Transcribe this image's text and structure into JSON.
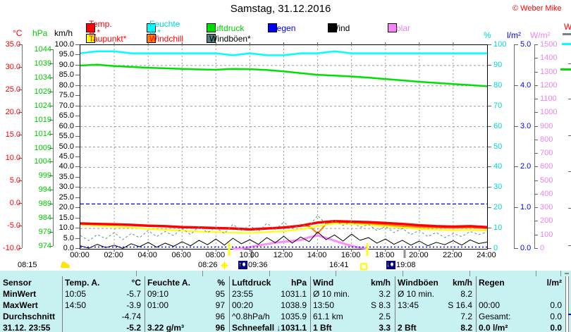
{
  "header": {
    "title": "Samstag, 31.12.2016",
    "copyright": "© Weber Mike"
  },
  "axis_headers": {
    "temp": "°C",
    "pressure": "hPa",
    "wind": "km/h",
    "humidity": "%",
    "rain": "l/m²",
    "solar": "W/m²"
  },
  "right_cutoff": {
    "label": "W"
  },
  "legend": {
    "items": [
      {
        "label": "Temp. A.*",
        "swatch": "#FF0000",
        "text_color": "#FF0000",
        "row": 0
      },
      {
        "label": "Feuchte A.*",
        "swatch": "#00FFFF",
        "text_color": "#00D5D5",
        "row": 0
      },
      {
        "label": "Luftdruck",
        "swatch": "#00E000",
        "text_color": "#00CC00",
        "row": 0
      },
      {
        "label": "Regen",
        "swatch": "#0000FF",
        "text_color": "#0000FF",
        "row": 0
      },
      {
        "label": "Wind",
        "swatch": "#000000",
        "text_color": "#000000",
        "row": 0
      },
      {
        "label": "Solar",
        "swatch": "#FF82FF",
        "text_color": "#EE82EE",
        "row": 0
      },
      {
        "label": "Taupunkt*",
        "swatch": "#FFFF00",
        "text_color": "#FF0000",
        "row": 1
      },
      {
        "label": "Windchill",
        "swatch": "#FF8000",
        "text_color": "#FF0000",
        "row": 1
      },
      {
        "label": "Windböen*",
        "swatch": "#4E7F7F",
        "text_color": "#000000",
        "row": 1
      }
    ]
  },
  "chart_data": {
    "type": "line",
    "title": "Samstag, 31.12.2016",
    "time_ticks": [
      "00:00",
      "02:00",
      "04:00",
      "06:00",
      "08:00",
      "10:00",
      "12:00",
      "14:00",
      "16:00",
      "18:00",
      "20:00",
      "22:00",
      "24:00"
    ],
    "grid": "dashed-gray, vertical every 2h, horizontal every 10 units",
    "axes": {
      "temp": {
        "unit": "°C",
        "min": -10,
        "max": 35,
        "ticks": [
          "35.0",
          "30.0",
          "25.0",
          "20.0",
          "15.0",
          "10.0",
          "5.0",
          "0.0",
          "-5.0",
          "-10.0"
        ]
      },
      "pressure": {
        "unit": "hPa",
        "min": 974,
        "max": 1044,
        "ticks": [
          "1044",
          "1039",
          "1034",
          "1029",
          "1024",
          "1019",
          "1014",
          "1009",
          "1004",
          "999",
          "994",
          "989",
          "984",
          "979",
          "974"
        ]
      },
      "wind": {
        "unit": "km/h",
        "min": 0,
        "max": 100,
        "ticks": [
          "100.0",
          "95.0",
          "90.0",
          "85.0",
          "80.0",
          "75.0",
          "70.0",
          "65.0",
          "60.0",
          "55.0",
          "50.0",
          "45.0",
          "40.0",
          "35.0",
          "30.0",
          "25.0",
          "20.0",
          "15.0",
          "10.0",
          "5.0",
          "0.0"
        ]
      },
      "humidity": {
        "unit": "%",
        "min": 0,
        "max": 100,
        "ticks": [
          "100",
          "90",
          "80",
          "70",
          "60",
          "50",
          "40",
          "30",
          "20",
          "10",
          "0"
        ]
      },
      "rain": {
        "unit": "l/m²",
        "min": 0,
        "max": 5,
        "ticks": [
          "5.0",
          "4.0",
          "3.0",
          "2.0",
          "1.0",
          "0.0"
        ]
      },
      "solar": {
        "unit": "W/m²",
        "min": 0,
        "max": 1500,
        "ticks": [
          "1500",
          "1400",
          "1300",
          "1200",
          "1100",
          "1000",
          "900",
          "800",
          "700",
          "600",
          "500",
          "400",
          "300",
          "200",
          "100",
          "0"
        ]
      }
    },
    "series": [
      {
        "name": "Luftdruck",
        "axis": "pressure",
        "color": "#00E000",
        "width": 2.5,
        "step_h": 1,
        "values": [
          1038.5,
          1038.8,
          1038.3,
          1038.0,
          1037.7,
          1037.5,
          1037.3,
          1037.1,
          1037.0,
          1037.3,
          1037.2,
          1036.9,
          1036.4,
          1035.8,
          1035.2,
          1034.9,
          1034.6,
          1034.2,
          1033.7,
          1033.2,
          1032.7,
          1032.3,
          1031.9,
          1031.5,
          1031.1
        ]
      },
      {
        "name": "Feuchte A.*",
        "axis": "humidity",
        "color": "#00FFFF",
        "width": 2.5,
        "step_h": 1,
        "values": [
          96,
          97,
          97,
          96,
          96,
          96,
          96,
          96,
          96,
          95,
          96,
          95,
          95,
          96,
          96,
          97,
          96,
          96,
          96,
          96,
          96,
          96,
          96,
          96,
          96
        ]
      },
      {
        "name": "Windchill",
        "axis": "temp",
        "color": "#FF8000",
        "width": 2,
        "step_h": 0.5,
        "values": [
          -4.4,
          -4.45,
          -4.5,
          -4.55,
          -4.6,
          -4.65,
          -4.7,
          -4.8,
          -4.9,
          -4.95,
          -5.0,
          -5.1,
          -5.2,
          -5.25,
          -5.3,
          -5.35,
          -5.4,
          -5.45,
          -5.5,
          -5.6,
          -5.7,
          -5.6,
          -5.5,
          -5.4,
          -5.3,
          -5.1,
          -4.9,
          -5.0,
          -6.6,
          -4.5,
          -4.3,
          -4.2,
          -4.3,
          -4.4,
          -4.5,
          -4.6,
          -4.7,
          -4.85,
          -5.0,
          -5.1,
          -5.2,
          -5.25,
          -5.3,
          -5.35,
          -5.4,
          -5.35,
          -5.3,
          -5.4,
          -5.5
        ]
      },
      {
        "name": "Taupunkt*",
        "axis": "temp",
        "color": "#FFFF00",
        "width": 2,
        "step_h": 1,
        "values": [
          -4.7,
          -4.9,
          -5.1,
          -5.3,
          -5.6,
          -5.8,
          -6.0,
          -6.2,
          -6.3,
          -6.4,
          -6.5,
          -6.3,
          -6.1,
          -5.7,
          -5.0,
          -4.4,
          -4.5,
          -4.7,
          -5.0,
          -5.3,
          -5.6,
          -5.8,
          -5.9,
          -5.8,
          -6.0
        ]
      },
      {
        "name": "Temp. A.*",
        "axis": "temp",
        "color": "#FF0000",
        "width": 3.5,
        "step_h": 1,
        "values": [
          -4.4,
          -4.5,
          -4.6,
          -4.7,
          -4.9,
          -5.0,
          -5.2,
          -5.3,
          -5.4,
          -5.5,
          -5.7,
          -5.5,
          -5.3,
          -4.9,
          -4.2,
          -3.9,
          -4.0,
          -4.1,
          -4.3,
          -4.5,
          -4.8,
          -5.0,
          -5.1,
          -5.0,
          -5.2
        ]
      },
      {
        "name": "Solar",
        "axis": "solar",
        "color": "#FB8CFB",
        "width": 3,
        "step_h": 0.5,
        "clip_zero": true,
        "values": [
          0,
          0,
          0,
          0,
          0,
          0,
          0,
          0,
          0,
          0,
          0,
          0,
          0,
          0,
          0,
          0,
          0,
          0,
          0,
          2,
          12,
          25,
          35,
          45,
          52,
          58,
          65,
          85,
          98,
          80,
          60,
          40,
          22,
          8,
          0,
          0,
          0,
          0,
          0,
          0,
          0,
          0,
          0,
          0,
          0,
          0,
          0,
          0,
          0
        ]
      },
      {
        "name": "Windböen*",
        "axis": "wind",
        "color": "#5E8F8F",
        "width": 1,
        "dash": "3,3",
        "step_h": 0.5,
        "values": [
          6.5,
          4.0,
          7.0,
          5.0,
          8.0,
          4.5,
          7.5,
          5.5,
          9.0,
          6.0,
          8.5,
          6.5,
          10.0,
          7.0,
          11.0,
          8.0,
          10.5,
          7.5,
          12.0,
          9.0,
          11.5,
          8.5,
          12.5,
          9.5,
          13.0,
          10.0,
          12.0,
          11.0,
          16.4,
          12.0,
          14.0,
          11.5,
          13.5,
          10.5,
          12.0,
          9.0,
          11.0,
          8.0,
          10.0,
          7.0,
          9.0,
          6.0,
          8.0,
          5.5,
          7.5,
          6.0,
          8.5,
          7.0,
          8.2
        ]
      },
      {
        "name": "Wind",
        "axis": "wind",
        "color": "#000000",
        "width": 1,
        "step_h": 0.5,
        "values": [
          1.5,
          0.3,
          2.2,
          0.6,
          1.8,
          0.2,
          2.5,
          1.0,
          3.2,
          0.8,
          2.8,
          1.2,
          3.5,
          1.5,
          4.2,
          2.0,
          4.8,
          1.8,
          5.2,
          2.5,
          4.5,
          2.2,
          5.5,
          3.0,
          6.2,
          2.8,
          5.8,
          3.5,
          8.3,
          4.5,
          6.8,
          3.8,
          7.2,
          4.2,
          5.5,
          2.8,
          4.8,
          2.2,
          4.2,
          1.8,
          3.8,
          1.5,
          3.2,
          2.0,
          4.0,
          1.8,
          4.4,
          2.6,
          3.3
        ]
      },
      {
        "name": "Regen",
        "axis": "rain",
        "color": "#0000FF",
        "width": 1.5,
        "dash": "2,3",
        "step_h": 1,
        "values": [
          0,
          0,
          0,
          0,
          0,
          0,
          0,
          0,
          0,
          0,
          0,
          0,
          0,
          0,
          0,
          0,
          0,
          0,
          0,
          0,
          0,
          0,
          0,
          0,
          0
        ]
      }
    ],
    "threshold_line": {
      "color": "#0000FF",
      "style": "dashed",
      "value_on_kmh_scale": 22
    },
    "sun_moon_markers": [
      {
        "time": "08:26",
        "color": "#FFFF00"
      },
      {
        "time": "09:36",
        "color": "#909090"
      },
      {
        "time": "16:41",
        "color": "#FFFF00"
      },
      {
        "time": "19:08",
        "color": "#909090"
      }
    ]
  },
  "events": [
    {
      "time": "08:15",
      "icon": "cloud"
    },
    {
      "time": "08:26",
      "icon": "sun"
    },
    {
      "time": "09:36",
      "icon": "moonrise"
    },
    {
      "time": "16:41",
      "icon": "sun-outline"
    },
    {
      "time": "19:08",
      "icon": "moonset"
    }
  ],
  "table": {
    "header": [
      "Sensor",
      "Temp. A.",
      "°C",
      "Feuchte A.",
      "%",
      "Luftdruck",
      "hPa",
      "Wind",
      "km/h",
      "Windböen",
      "km/h",
      "Regen",
      "l/m²"
    ],
    "rows": [
      [
        "MinWert",
        "10:05",
        "-5.7",
        "09:10",
        "95",
        "23:55",
        "1031.1",
        "Ø 10 min.",
        "3.2",
        "Ø 10 min.",
        "8.2",
        "",
        ""
      ],
      [
        "MaxWert",
        "14:50",
        "-3.9",
        "01:00",
        "97",
        "00:20",
        "1038.9",
        "13:50",
        "S 8.3",
        "13:45",
        "S 16.4",
        "00:00",
        "0.0"
      ],
      [
        "Durchschnitt",
        "",
        "-4.74",
        "",
        "96",
        "^0.8hPa/h",
        "1035.9",
        "61.1 km",
        "2.5",
        "",
        "7.2",
        "Gesamt:",
        "0.0"
      ],
      [
        "31.12. 23:55",
        "",
        "-5.2",
        "3.22 g/m³",
        "96",
        "Schneefall",
        "↓1031.1",
        "1 Bft",
        "3.3",
        "2 Bft",
        "8.2",
        "0.0 l/m²",
        "0.0"
      ]
    ]
  }
}
